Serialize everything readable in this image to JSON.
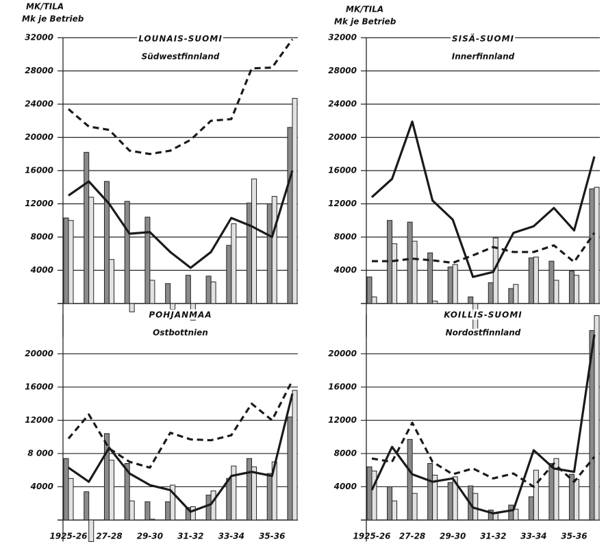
{
  "chart_data": [
    {
      "type": "combo",
      "title": "LOUNAIS-SUOMI",
      "subtitle": "Südwestfinnland",
      "ylabel": [
        "MK/TILA",
        "Mk je Betrieb"
      ],
      "categories": [
        null,
        null,
        null,
        null,
        null,
        null,
        null,
        null,
        null,
        null,
        null,
        null
      ],
      "ylim": [
        -4000,
        32000
      ],
      "yticks": [
        4000,
        8000,
        12000,
        16000,
        20000,
        24000,
        28000,
        32000
      ],
      "grid": true,
      "series": [
        {
          "kind": "bar",
          "color": "#8a8a8a",
          "values": [
            10300,
            18200,
            14700,
            12300,
            10400,
            2400,
            3400,
            3300,
            7000,
            12100,
            12000,
            21200
          ]
        },
        {
          "kind": "bar",
          "color": "#e2e2e2",
          "values": [
            10000,
            12800,
            5300,
            -1000,
            2800,
            -700,
            -2000,
            2600,
            9600,
            15000,
            12900,
            24700
          ]
        },
        {
          "kind": "line",
          "dash": true,
          "color": "#1a1a1a",
          "values": [
            23400,
            21300,
            20900,
            18400,
            18000,
            18400,
            19700,
            22000,
            22200,
            28300,
            28400,
            31800
          ]
        },
        {
          "kind": "line",
          "dash": false,
          "color": "#1a1a1a",
          "values": [
            13000,
            14700,
            12000,
            8400,
            8600,
            6200,
            4300,
            6200,
            10300,
            9300,
            8000,
            16000
          ]
        }
      ]
    },
    {
      "type": "combo",
      "title": "SISÄ-SUOMI",
      "subtitle": "Innerfinnland",
      "ylabel": [
        "MK/TILA",
        "Mk je Betrieb"
      ],
      "categories": [
        null,
        null,
        null,
        null,
        null,
        null,
        null,
        null,
        null,
        null,
        null,
        null
      ],
      "ylim": [
        -4000,
        32000
      ],
      "yticks": [
        4000,
        8000,
        12000,
        16000,
        20000,
        24000,
        28000,
        32000
      ],
      "grid": true,
      "series": [
        {
          "kind": "bar",
          "color": "#8a8a8a",
          "values": [
            3200,
            10000,
            9800,
            6100,
            4400,
            800,
            2500,
            1800,
            5500,
            5100,
            3900,
            13800
          ]
        },
        {
          "kind": "bar",
          "color": "#e2e2e2",
          "values": [
            800,
            7200,
            7500,
            300,
            4700,
            -3900,
            7900,
            2300,
            5600,
            2800,
            3400,
            14000
          ]
        },
        {
          "kind": "line",
          "dash": true,
          "color": "#1a1a1a",
          "values": [
            5100,
            5100,
            5400,
            5200,
            4900,
            5800,
            6800,
            6200,
            6200,
            7000,
            5000,
            8500
          ]
        },
        {
          "kind": "line",
          "dash": false,
          "color": "#1a1a1a",
          "values": [
            12800,
            15000,
            21900,
            12400,
            10100,
            3200,
            3800,
            8500,
            9300,
            11500,
            8800,
            17700
          ]
        }
      ]
    },
    {
      "type": "combo",
      "title": "POHJANMAA",
      "subtitle": "Ostbottnien",
      "categories": [
        "1925-26",
        null,
        "27-28",
        null,
        "29-30",
        null,
        "31-32",
        null,
        "33-34",
        null,
        "35-36",
        null
      ],
      "ylim": [
        -2600,
        24800
      ],
      "yticks": [
        4000,
        {
          "value": 8000,
          "label": "8 000"
        },
        12000,
        16000,
        20000
      ],
      "grid": true,
      "series": [
        {
          "kind": "bar",
          "color": "#8a8a8a",
          "values": [
            7400,
            3400,
            10400,
            6800,
            2200,
            2200,
            1500,
            3000,
            5000,
            7400,
            5600,
            12400
          ]
        },
        {
          "kind": "bar",
          "color": "#e2e2e2",
          "values": [
            5000,
            -2600,
            7200,
            2300,
            100,
            4200,
            1600,
            3500,
            6500,
            6400,
            7000,
            15600
          ]
        },
        {
          "kind": "line",
          "dash": true,
          "color": "#1a1a1a",
          "values": [
            9800,
            12700,
            8600,
            7000,
            6300,
            10500,
            9700,
            9600,
            10200,
            14000,
            12000,
            16800
          ]
        },
        {
          "kind": "line",
          "dash": false,
          "color": "#1a1a1a",
          "values": [
            6300,
            4600,
            8700,
            5600,
            4200,
            3600,
            1000,
            1900,
            5300,
            5800,
            5300,
            15200
          ]
        }
      ]
    },
    {
      "type": "combo",
      "title": "KOILLIS-SUOMI",
      "subtitle": "Nordostfinnland",
      "categories": [
        "1925-26",
        null,
        "27-28",
        null,
        "29-30",
        null,
        "31-32",
        null,
        "33-34",
        null,
        "35-36",
        null
      ],
      "ylim": [
        -2600,
        24800
      ],
      "yticks": [
        4000,
        8000,
        12000,
        16000,
        20000
      ],
      "grid": true,
      "series": [
        {
          "kind": "bar",
          "color": "#8a8a8a",
          "values": [
            6400,
            4000,
            9700,
            6800,
            4500,
            4100,
            1200,
            1800,
            2800,
            6800,
            5500,
            22800
          ]
        },
        {
          "kind": "bar",
          "color": "#e2e2e2",
          "values": [
            5900,
            2300,
            3200,
            5400,
            5200,
            3200,
            800,
            1300,
            6000,
            7400,
            4900,
            24600
          ]
        },
        {
          "kind": "line",
          "dash": true,
          "color": "#1a1a1a",
          "values": [
            7400,
            7000,
            11700,
            7000,
            5500,
            6200,
            5000,
            5600,
            4000,
            6800,
            4600,
            7600
          ]
        },
        {
          "kind": "line",
          "dash": false,
          "color": "#1a1a1a",
          "values": [
            3600,
            8800,
            5500,
            4600,
            5000,
            1500,
            800,
            1200,
            8400,
            6200,
            5800,
            22300
          ]
        }
      ]
    }
  ]
}
